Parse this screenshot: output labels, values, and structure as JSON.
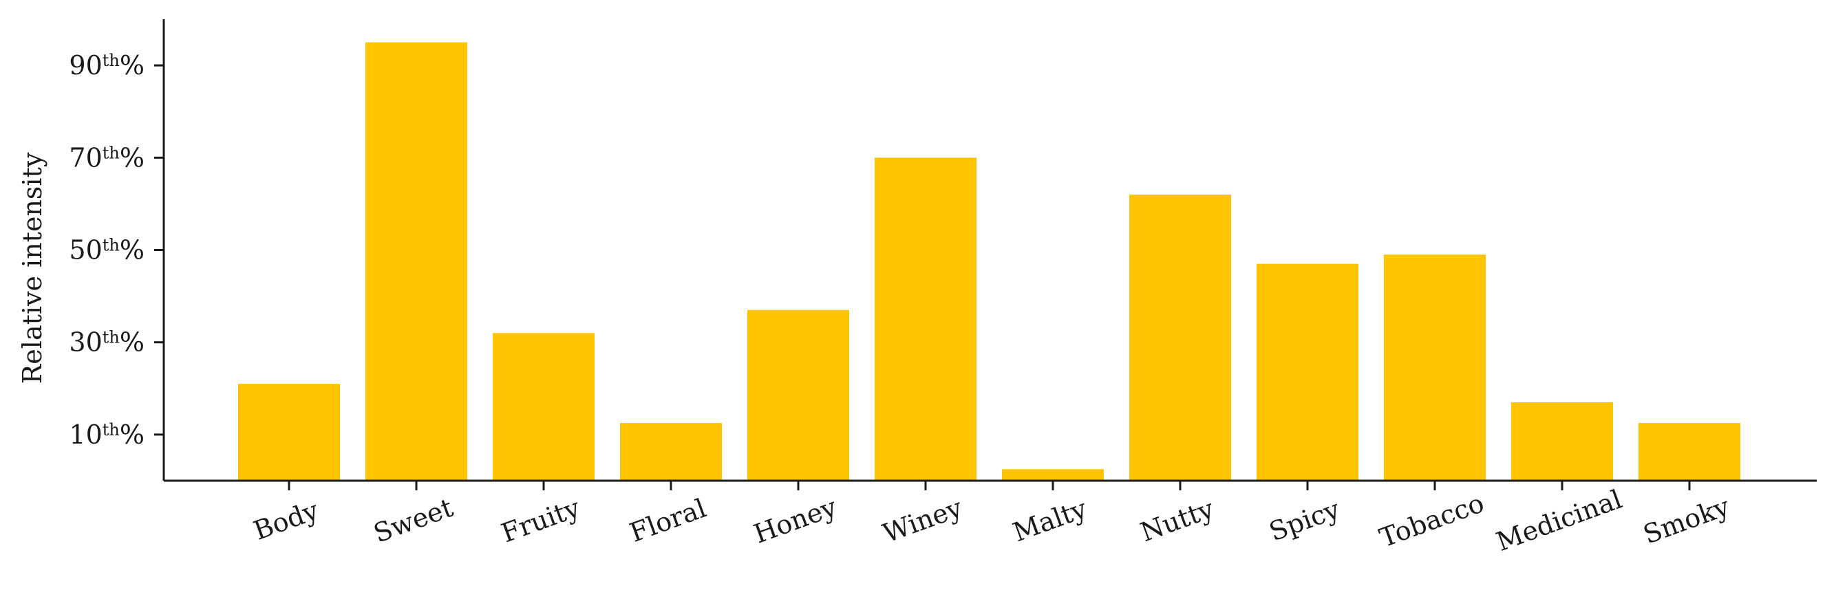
{
  "chart_data": {
    "type": "bar",
    "title": "",
    "xlabel": "",
    "ylabel": "Relative intensity",
    "categories": [
      "Body",
      "Sweet",
      "Fruity",
      "Floral",
      "Honey",
      "Winey",
      "Malty",
      "Nutty",
      "Spicy",
      "Tobacco",
      "Medicinal",
      "Smoky"
    ],
    "values": [
      21,
      95,
      32,
      12.5,
      37,
      70,
      2.5,
      62,
      47,
      49,
      17,
      12.5
    ],
    "ylim": [
      0,
      100
    ],
    "yticks": [
      10,
      30,
      50,
      70,
      90
    ],
    "ytick_labels": [
      {
        "number": "10",
        "suffix": "th",
        "percent": "%"
      },
      {
        "number": "30",
        "suffix": "th",
        "percent": "%"
      },
      {
        "number": "50",
        "suffix": "th",
        "percent": "%"
      },
      {
        "number": "70",
        "suffix": "th",
        "percent": "%"
      },
      {
        "number": "90",
        "suffix": "th",
        "percent": "%"
      }
    ],
    "bar_color": "#FFC400",
    "grid": false,
    "legend": "none"
  }
}
